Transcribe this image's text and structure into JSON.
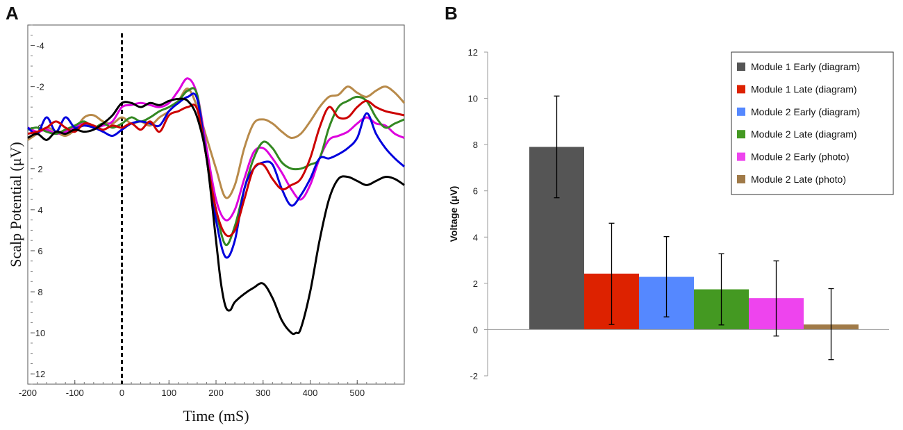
{
  "panel_a_label": "A",
  "panel_b_label": "B",
  "chart_data": [
    {
      "panel": "A",
      "type": "line",
      "xlabel": "Time (mS)",
      "ylabel": "Scalp Potential (μV)",
      "xlim": [
        -200,
        600
      ],
      "ylim": [
        -5,
        12.5
      ],
      "y_inverted": true,
      "x_ticks": [
        -200,
        -100,
        0,
        100,
        200,
        300,
        400,
        500
      ],
      "y_ticks": [
        -4,
        -2,
        0,
        2,
        4,
        6,
        8,
        10,
        12
      ],
      "event_marker_x": 0,
      "series": [
        {
          "name": "Module 1 Early (diagram)",
          "color": "#000000",
          "x": [
            -200,
            -180,
            -160,
            -140,
            -120,
            -100,
            -80,
            -60,
            -40,
            -20,
            0,
            20,
            40,
            60,
            80,
            100,
            120,
            140,
            160,
            180,
            200,
            210,
            220,
            230,
            240,
            260,
            280,
            300,
            320,
            340,
            360,
            370,
            380,
            400,
            420,
            440,
            460,
            480,
            500,
            520,
            540,
            560,
            580,
            600
          ],
          "y": [
            0.5,
            0.3,
            0.6,
            0.2,
            0.3,
            0.1,
            0.2,
            0.1,
            -0.2,
            -0.6,
            -1.2,
            -1.2,
            -1.0,
            -1.2,
            -1.1,
            -1.3,
            -1.4,
            -1.3,
            -0.5,
            1.5,
            5.5,
            7.5,
            8.7,
            8.9,
            8.5,
            8.1,
            7.8,
            7.6,
            8.3,
            9.4,
            10.0,
            10.0,
            9.8,
            8.0,
            5.5,
            3.5,
            2.5,
            2.4,
            2.6,
            2.8,
            2.6,
            2.4,
            2.5,
            2.8
          ]
        },
        {
          "name": "Module 1 Late (diagram)",
          "color": "#cc0000",
          "x": [
            -200,
            -180,
            -160,
            -140,
            -120,
            -100,
            -80,
            -60,
            -40,
            -20,
            0,
            20,
            40,
            60,
            80,
            100,
            120,
            140,
            160,
            180,
            200,
            220,
            240,
            260,
            280,
            300,
            320,
            340,
            360,
            380,
            400,
            420,
            440,
            460,
            480,
            500,
            520,
            540,
            560,
            580,
            600
          ],
          "y": [
            0.3,
            0.2,
            0.0,
            -0.3,
            0.0,
            0.2,
            -0.2,
            -0.1,
            0.1,
            -0.1,
            0.0,
            -0.2,
            0.1,
            -0.3,
            0.2,
            -0.6,
            -0.8,
            -1.0,
            -0.9,
            1.5,
            4.0,
            5.2,
            5.0,
            3.5,
            2.0,
            1.8,
            2.5,
            3.0,
            2.8,
            2.5,
            1.5,
            0.0,
            -1.0,
            -0.5,
            -0.5,
            -1.0,
            -1.3,
            -1.0,
            -0.8,
            -0.7,
            -0.6
          ]
        },
        {
          "name": "Module 2 Early (diagram)",
          "color": "#0000dd",
          "x": [
            -200,
            -180,
            -160,
            -140,
            -120,
            -100,
            -80,
            -60,
            -40,
            -20,
            0,
            20,
            40,
            60,
            80,
            100,
            120,
            140,
            160,
            180,
            200,
            220,
            240,
            260,
            280,
            300,
            320,
            340,
            360,
            380,
            400,
            420,
            440,
            460,
            480,
            500,
            520,
            540,
            560,
            580,
            600
          ],
          "y": [
            0.0,
            0.3,
            -0.5,
            0.2,
            -0.5,
            0.0,
            -0.1,
            0.0,
            0.2,
            0.4,
            0.1,
            -0.2,
            -0.3,
            -0.2,
            -0.1,
            -0.8,
            -1.2,
            -1.5,
            -1.4,
            1.5,
            4.5,
            6.3,
            5.5,
            3.0,
            2.0,
            1.7,
            1.8,
            3.0,
            3.8,
            3.3,
            2.5,
            1.5,
            1.5,
            1.3,
            1.0,
            0.5,
            -0.7,
            0.3,
            1.0,
            1.5,
            1.9
          ]
        },
        {
          "name": "Module 2 Late (diagram)",
          "color": "#338822",
          "x": [
            -200,
            -180,
            -160,
            -140,
            -120,
            -100,
            -80,
            -60,
            -40,
            -20,
            0,
            20,
            40,
            60,
            80,
            100,
            120,
            140,
            160,
            180,
            200,
            220,
            240,
            260,
            280,
            300,
            320,
            340,
            360,
            380,
            400,
            420,
            440,
            460,
            480,
            500,
            520,
            540,
            560,
            580,
            600
          ],
          "y": [
            0.1,
            0.0,
            0.2,
            0.3,
            0.1,
            -0.1,
            -0.3,
            0.0,
            -0.2,
            0.0,
            -0.2,
            -0.5,
            -0.3,
            -0.5,
            -0.8,
            -1.0,
            -1.3,
            -1.8,
            -1.6,
            1.5,
            4.0,
            5.7,
            4.8,
            3.0,
            1.5,
            0.7,
            1.0,
            1.7,
            2.0,
            2.0,
            1.8,
            1.5,
            0.0,
            -1.0,
            -1.3,
            -1.5,
            -1.3,
            -0.5,
            0.0,
            -0.2,
            -0.4
          ]
        },
        {
          "name": "Module 2 Early (photo)",
          "color": "#dd00dd",
          "x": [
            -200,
            -180,
            -160,
            -140,
            -120,
            -100,
            -80,
            -60,
            -40,
            -20,
            0,
            20,
            40,
            60,
            80,
            100,
            120,
            140,
            160,
            180,
            200,
            220,
            240,
            260,
            280,
            300,
            320,
            340,
            360,
            380,
            400,
            420,
            440,
            460,
            480,
            500,
            520,
            540,
            560,
            580,
            600
          ],
          "y": [
            0.0,
            0.2,
            0.1,
            0.3,
            0.2,
            0.0,
            -0.2,
            0.0,
            -0.1,
            -0.3,
            -1.0,
            -1.1,
            -1.2,
            -1.1,
            -1.0,
            -1.2,
            -1.8,
            -2.4,
            -1.6,
            1.0,
            3.5,
            4.5,
            4.0,
            2.5,
            1.2,
            1.0,
            1.5,
            2.2,
            3.0,
            3.5,
            2.8,
            1.5,
            0.6,
            0.4,
            0.2,
            -0.2,
            -0.5,
            -0.2,
            -0.1,
            0.3,
            0.5
          ]
        },
        {
          "name": "Module 2 Late (photo)",
          "color": "#b88a4a",
          "x": [
            -200,
            -180,
            -160,
            -140,
            -120,
            -100,
            -80,
            -60,
            -40,
            -20,
            0,
            20,
            40,
            60,
            80,
            100,
            120,
            140,
            160,
            180,
            200,
            220,
            240,
            260,
            280,
            300,
            320,
            340,
            360,
            380,
            400,
            420,
            440,
            460,
            480,
            500,
            520,
            540,
            560,
            580,
            600
          ],
          "y": [
            0.6,
            0.3,
            0.0,
            0.2,
            0.4,
            0.1,
            -0.5,
            -0.6,
            -0.3,
            -0.2,
            -0.5,
            -0.2,
            -0.3,
            -0.1,
            -0.5,
            -0.8,
            -1.3,
            -1.9,
            -1.0,
            0.5,
            2.0,
            3.4,
            2.8,
            1.0,
            -0.2,
            -0.4,
            -0.2,
            0.2,
            0.5,
            0.3,
            -0.3,
            -1.0,
            -1.5,
            -1.6,
            -2.0,
            -1.7,
            -1.5,
            -1.8,
            -2.0,
            -1.7,
            -1.2
          ]
        }
      ]
    },
    {
      "panel": "B",
      "type": "bar",
      "ylabel": "Voltage (μV)",
      "ylim": [
        -2,
        12
      ],
      "y_ticks": [
        -2,
        0,
        2,
        4,
        6,
        8,
        10,
        12
      ],
      "legend_position": "top-right",
      "categories": [
        "Module 1 Early (diagram)",
        "Module 1 Late (diagram)",
        "Module 2 Early (diagram)",
        "Module 2 Late (diagram)",
        "Module 2 Early (photo)",
        "Module 2 Late (photo)"
      ],
      "values": [
        7.9,
        2.42,
        2.28,
        1.74,
        1.36,
        0.22
      ],
      "error_low": [
        5.7,
        0.22,
        0.55,
        0.2,
        -0.28,
        -1.3
      ],
      "error_high": [
        10.1,
        4.6,
        4.02,
        3.28,
        2.97,
        1.77
      ],
      "colors": [
        "#555555",
        "#dd2200",
        "#5588ff",
        "#449922",
        "#ee44ee",
        "#a07a48"
      ]
    }
  ]
}
